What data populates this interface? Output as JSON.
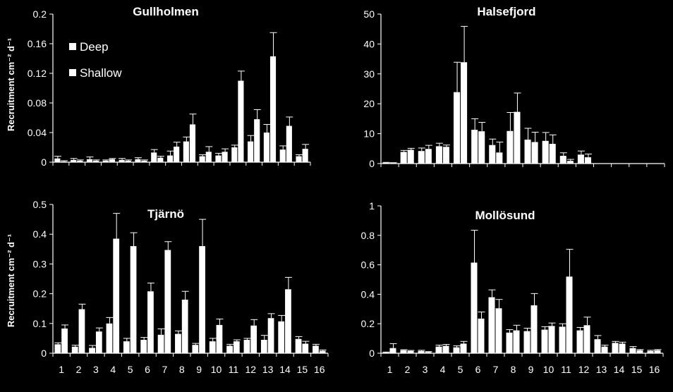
{
  "colors": {
    "background": "#000000",
    "foreground": "#ffffff"
  },
  "ylabel": "Recruitment cm⁻² d⁻¹",
  "chart_data": [
    {
      "type": "bar",
      "title": "Gullholmen",
      "categories": [
        "1",
        "2",
        "3",
        "4",
        "5",
        "6",
        "7",
        "8",
        "9",
        "10",
        "11",
        "12",
        "13",
        "14",
        "15",
        "16"
      ],
      "series": [
        {
          "name": "Deep",
          "values": [
            0.005,
            0.003,
            0.004,
            0.002,
            0.003,
            0.004,
            0.013,
            0.009,
            0.028,
            0.008,
            0.009,
            0.02,
            0.028,
            0.04,
            0.017,
            0.008
          ],
          "errors": [
            0.003,
            0.002,
            0.003,
            0.001,
            0.002,
            0.002,
            0.004,
            0.006,
            0.006,
            0.002,
            0.003,
            0.003,
            0.008,
            0.011,
            0.005,
            0.002
          ]
        },
        {
          "name": "Shallow",
          "values": [
            0.001,
            0.002,
            0.002,
            0.004,
            0.002,
            0.002,
            0.006,
            0.021,
            0.051,
            0.014,
            0.014,
            0.11,
            0.058,
            0.143,
            0.049,
            0.018
          ],
          "errors": [
            0.001,
            0.001,
            0.001,
            0.001,
            0.001,
            0.001,
            0.002,
            0.006,
            0.014,
            0.007,
            0.004,
            0.013,
            0.013,
            0.032,
            0.012,
            0.006
          ]
        }
      ],
      "ylim": [
        0,
        0.2
      ],
      "yticks": [
        0,
        0.04,
        0.08,
        0.12,
        0.16,
        0.2
      ],
      "ytick_labels": [
        "0",
        "0.04",
        "0.08",
        "0.12",
        "0.16",
        "0.2"
      ],
      "xtick_labels_shown": false,
      "legend": "top-left",
      "grid": false
    },
    {
      "type": "bar",
      "title": "Halsefjord",
      "categories": [
        "1",
        "2",
        "3",
        "4",
        "5",
        "6",
        "7",
        "8",
        "9",
        "10",
        "11",
        "12",
        "13",
        "14",
        "15",
        "16"
      ],
      "series": [
        {
          "name": "Deep",
          "values": [
            0.3,
            3.9,
            4.2,
            5.8,
            23.9,
            11.3,
            6.2,
            10.9,
            8.0,
            7.6,
            2.6,
            3.0,
            0,
            0,
            0,
            0
          ],
          "errors": [
            0.1,
            0.5,
            1.0,
            1.0,
            10.0,
            3.7,
            2.0,
            6.2,
            3.8,
            2.8,
            1.0,
            1.2,
            0,
            0,
            0,
            0
          ]
        },
        {
          "name": "Shallow",
          "values": [
            0.2,
            4.6,
            4.9,
            5.6,
            33.9,
            10.8,
            3.7,
            17.3,
            7.2,
            6.6,
            0.9,
            2.1,
            0,
            0,
            0,
            0
          ],
          "errors": [
            0.1,
            0.5,
            1.2,
            0.6,
            12.0,
            3.0,
            3.5,
            6.3,
            3.3,
            3.0,
            0.5,
            1.1,
            0,
            0,
            0,
            0
          ]
        }
      ],
      "ylim": [
        0,
        50
      ],
      "yticks": [
        0,
        10,
        20,
        30,
        40,
        50
      ],
      "ytick_labels": [
        "0",
        "10",
        "20",
        "30",
        "40",
        "50"
      ],
      "xtick_labels_shown": false,
      "grid": false
    },
    {
      "type": "bar",
      "title": "Tjärnö",
      "categories": [
        "1",
        "2",
        "3",
        "4",
        "5",
        "6",
        "7",
        "8",
        "9",
        "10",
        "11",
        "12",
        "13",
        "14",
        "15",
        "16"
      ],
      "series": [
        {
          "name": "Deep",
          "values": [
            0.03,
            0.022,
            0.018,
            0.1,
            0.04,
            0.045,
            0.062,
            0.065,
            0.028,
            0.04,
            0.025,
            0.045,
            0.045,
            0.107,
            0.048,
            0.025
          ],
          "errors": [
            0.005,
            0.005,
            0.008,
            0.02,
            0.01,
            0.008,
            0.02,
            0.01,
            0.005,
            0.01,
            0.005,
            0.005,
            0.015,
            0.02,
            0.008,
            0.005
          ]
        },
        {
          "name": "Shallow",
          "values": [
            0.083,
            0.148,
            0.073,
            0.385,
            0.36,
            0.208,
            0.347,
            0.18,
            0.36,
            0.095,
            0.04,
            0.093,
            0.118,
            0.215,
            0.032,
            0.008
          ],
          "errors": [
            0.012,
            0.017,
            0.012,
            0.085,
            0.045,
            0.028,
            0.028,
            0.028,
            0.09,
            0.02,
            0.005,
            0.02,
            0.015,
            0.04,
            0.008,
            0.003
          ]
        }
      ],
      "ylim": [
        0,
        0.5
      ],
      "yticks": [
        0,
        0.1,
        0.2,
        0.3,
        0.4,
        0.5
      ],
      "ytick_labels": [
        "0",
        "0.1",
        "0.2",
        "0.3",
        "0.4",
        "0.5"
      ],
      "xtick_labels_shown": true,
      "grid": false
    },
    {
      "type": "bar",
      "title": "Mollösund",
      "categories": [
        "1",
        "2",
        "3",
        "4",
        "5",
        "6",
        "7",
        "8",
        "9",
        "10",
        "11",
        "12",
        "13",
        "14",
        "15",
        "16"
      ],
      "series": [
        {
          "name": "Deep",
          "values": [
            0.005,
            0.02,
            0.015,
            0.045,
            0.04,
            0.615,
            0.38,
            0.14,
            0.15,
            0.16,
            0.18,
            0.155,
            0.095,
            0.07,
            0.035,
            0.015
          ],
          "errors": [
            0.003,
            0.004,
            0.005,
            0.01,
            0.01,
            0.22,
            0.05,
            0.02,
            0.02,
            0.02,
            0.02,
            0.02,
            0.025,
            0.01,
            0.01,
            0.005
          ]
        },
        {
          "name": "Shallow",
          "values": [
            0.035,
            0.015,
            0.008,
            0.05,
            0.065,
            0.235,
            0.305,
            0.155,
            0.325,
            0.185,
            0.52,
            0.19,
            0.045,
            0.065,
            0.02,
            0.02
          ],
          "errors": [
            0.03,
            0.004,
            0.003,
            0.01,
            0.015,
            0.045,
            0.06,
            0.035,
            0.08,
            0.02,
            0.185,
            0.055,
            0.01,
            0.01,
            0.005,
            0.005
          ]
        }
      ],
      "ylim": [
        0,
        1
      ],
      "yticks": [
        0,
        0.2,
        0.4,
        0.6,
        0.8,
        1
      ],
      "ytick_labels": [
        "0",
        "0.2",
        "0.4",
        "0.6",
        "0.8",
        "1"
      ],
      "xtick_labels_shown": true,
      "grid": false
    }
  ]
}
